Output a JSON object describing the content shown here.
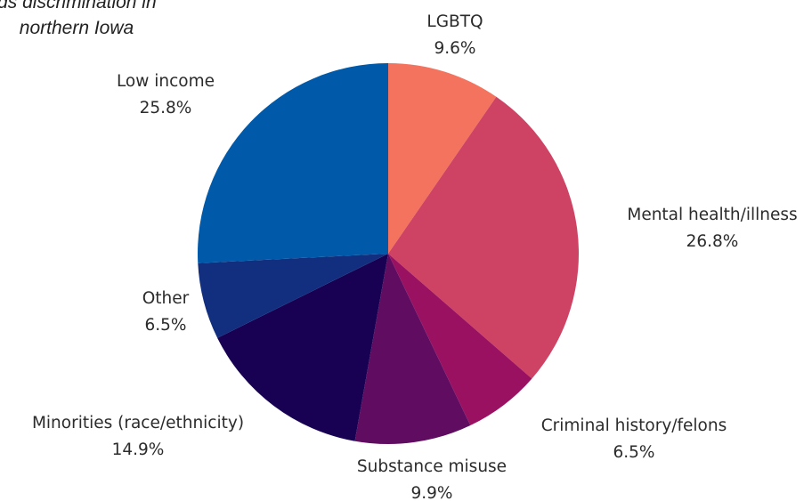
{
  "chart_data": {
    "type": "pie",
    "title": "Attitudes towards discrimination in northern Iowa",
    "title_lines": [
      "udes towards discrimination in",
      "northern Iowa"
    ],
    "slices": [
      {
        "label": "LGBTQ",
        "value_text": "9.6%",
        "value": 9.6,
        "color": "#F4735E"
      },
      {
        "label": "Mental health/illness",
        "value_text": "26.8%",
        "value": 26.8,
        "color": "#CE4264"
      },
      {
        "label": "Criminal history/felons",
        "value_text": "6.5%",
        "value": 6.5,
        "color": "#9B1162"
      },
      {
        "label": "Substance misuse",
        "value_text": "9.9%",
        "value": 9.9,
        "color": "#5F0C61"
      },
      {
        "label": "Minorities (race/ethnicity)",
        "value_text": "14.9%",
        "value": 14.9,
        "color": "#180052"
      },
      {
        "label": "Other",
        "value_text": "6.5%",
        "value": 6.5,
        "color": "#112F7E"
      },
      {
        "label": "Low income",
        "value_text": "25.8%",
        "value": 25.8,
        "color": "#0059A9"
      }
    ],
    "start_angle": "12 o'clock",
    "direction": "clockwise",
    "legend": "none"
  }
}
